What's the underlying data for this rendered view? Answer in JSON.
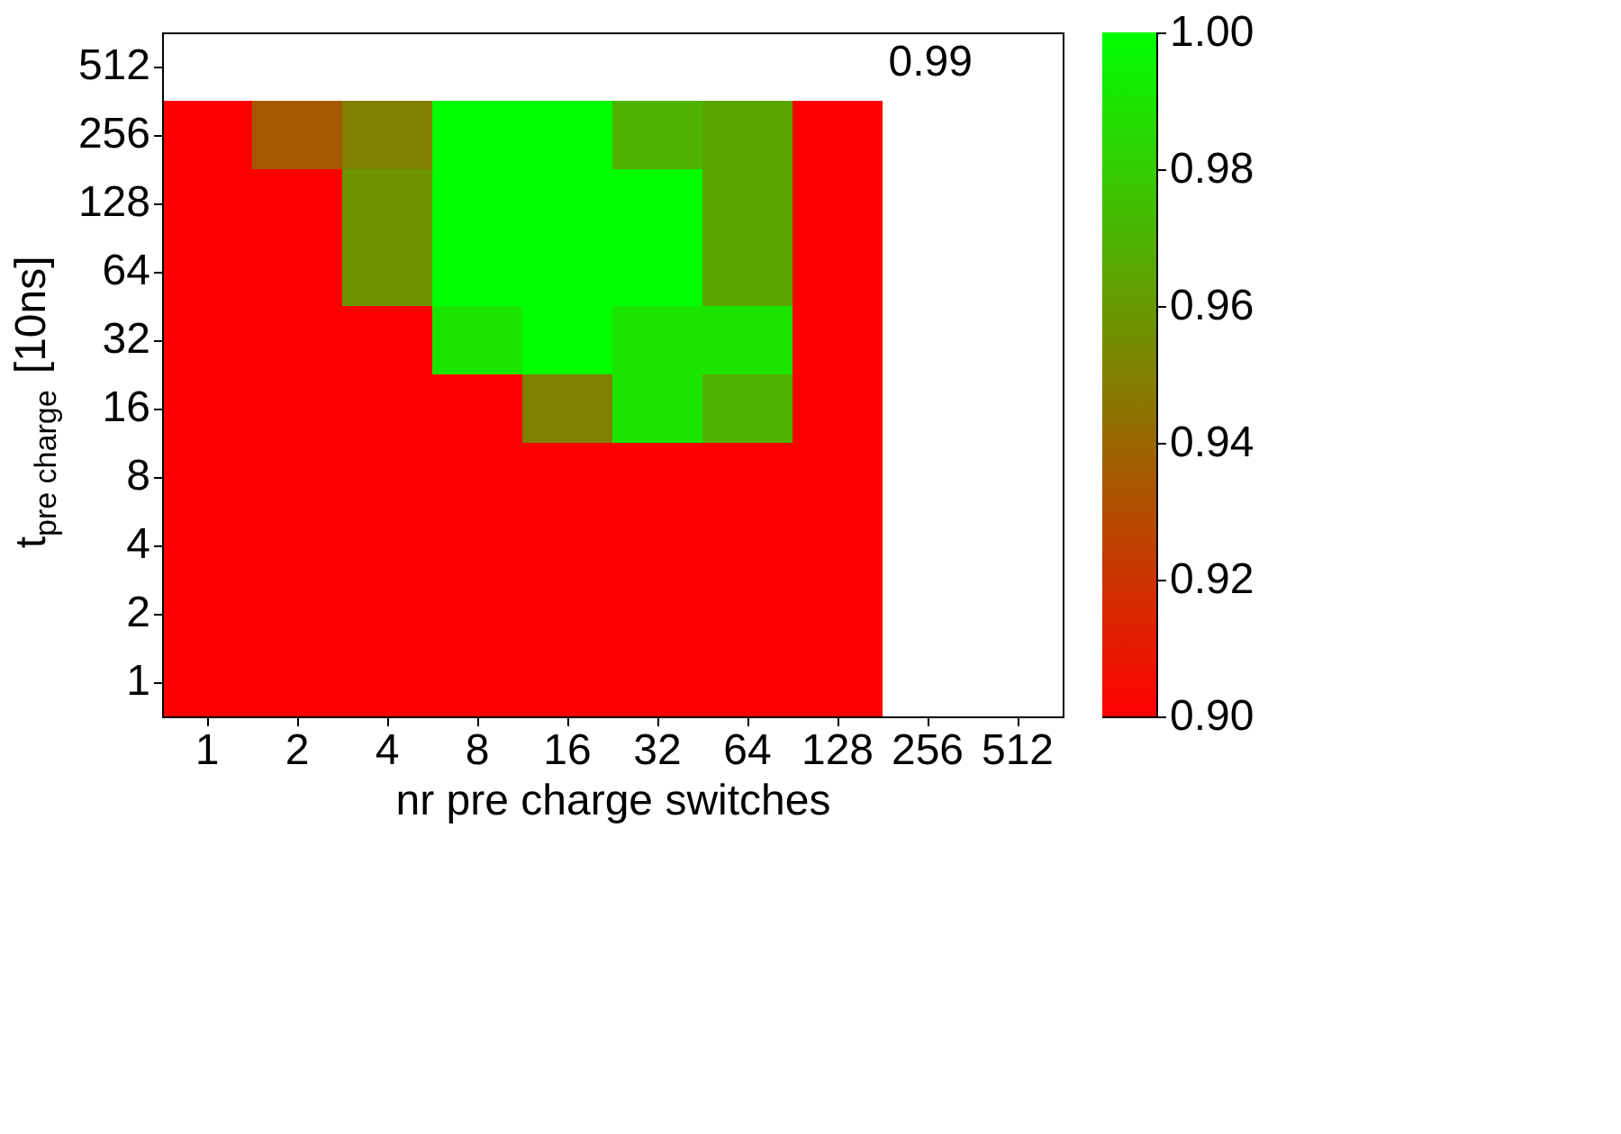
{
  "chart_data": {
    "type": "heatmap",
    "xlabel": "nr pre charge switches",
    "ylabel": "t$_{pre charge}$ [10ns]",
    "categories": [
      "1",
      "2",
      "4",
      "8",
      "16",
      "32",
      "64",
      "128",
      "256",
      "512"
    ],
    "y_categories": [
      "512",
      "256",
      "128",
      "64",
      "32",
      "16",
      "8",
      "4",
      "2",
      "1"
    ],
    "cells": [
      [
        null,
        null,
        null,
        null,
        null,
        null,
        null,
        null,
        null,
        null
      ],
      [
        0.9,
        0.935,
        0.95,
        1.0,
        1.0,
        0.97,
        0.965,
        0.9,
        null,
        null
      ],
      [
        0.9,
        0.9,
        0.958,
        1.0,
        1.0,
        1.0,
        0.965,
        0.9,
        null,
        null
      ],
      [
        0.9,
        0.9,
        0.958,
        1.0,
        1.0,
        1.0,
        0.965,
        0.9,
        null,
        null
      ],
      [
        0.9,
        0.9,
        0.9,
        0.99,
        1.0,
        0.99,
        0.99,
        0.9,
        null,
        null
      ],
      [
        0.9,
        0.9,
        0.9,
        0.9,
        0.95,
        0.99,
        0.97,
        0.9,
        null,
        null
      ],
      [
        0.9,
        0.9,
        0.9,
        0.9,
        0.9,
        0.9,
        0.9,
        0.9,
        null,
        null
      ],
      [
        0.9,
        0.9,
        0.9,
        0.9,
        0.9,
        0.9,
        0.9,
        0.9,
        null,
        null
      ],
      [
        0.9,
        0.9,
        0.9,
        0.9,
        0.9,
        0.9,
        0.9,
        0.9,
        null,
        null
      ],
      [
        0.9,
        0.9,
        0.9,
        0.9,
        0.9,
        0.9,
        0.9,
        0.9,
        null,
        null
      ]
    ],
    "clim": [
      0.9,
      1.0
    ],
    "cticks": [
      {
        "value": 0.9,
        "label": "0.90"
      },
      0.92,
      0.94,
      0.96,
      0.98,
      {
        "value": 1.0,
        "label": "1.00"
      }
    ],
    "annotations": [
      "0.99"
    ]
  }
}
